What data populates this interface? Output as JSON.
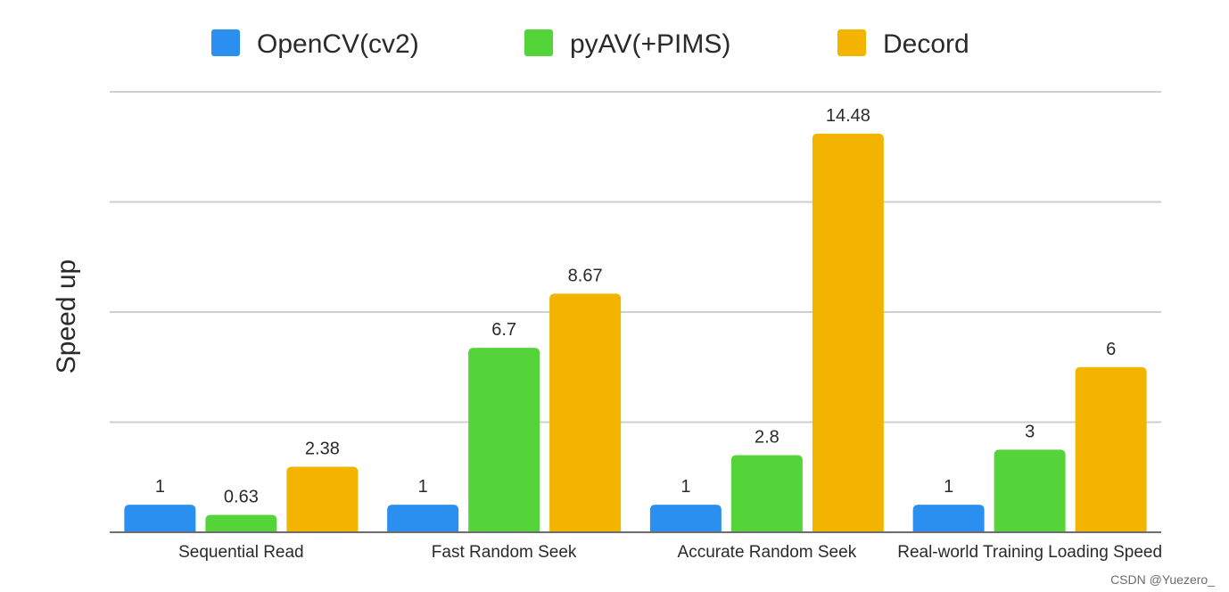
{
  "chart_data": {
    "type": "bar",
    "title": "",
    "xlabel": "",
    "ylabel": "Speed up",
    "ylim": [
      0,
      16
    ],
    "grid": true,
    "legend_position": "top",
    "categories": [
      "Sequential Read",
      "Fast Random Seek",
      "Accurate Random Seek",
      "Real-world Training Loading Speed"
    ],
    "series": [
      {
        "name": "OpenCV(cv2)",
        "color": "#2b8ff0",
        "values": [
          1,
          1,
          1,
          1
        ],
        "labels": [
          "1",
          "1",
          "1",
          "1"
        ]
      },
      {
        "name": "pyAV(+PIMS)",
        "color": "#55d43a",
        "values": [
          0.63,
          6.7,
          2.8,
          3
        ],
        "labels": [
          "0.63",
          "6.7",
          "2.8",
          "3"
        ]
      },
      {
        "name": "Decord",
        "color": "#f3b400",
        "values": [
          2.38,
          8.67,
          14.48,
          6
        ],
        "labels": [
          "2.38",
          "8.67",
          "14.48",
          "6"
        ]
      }
    ]
  },
  "watermark": "CSDN @Yuezero_"
}
